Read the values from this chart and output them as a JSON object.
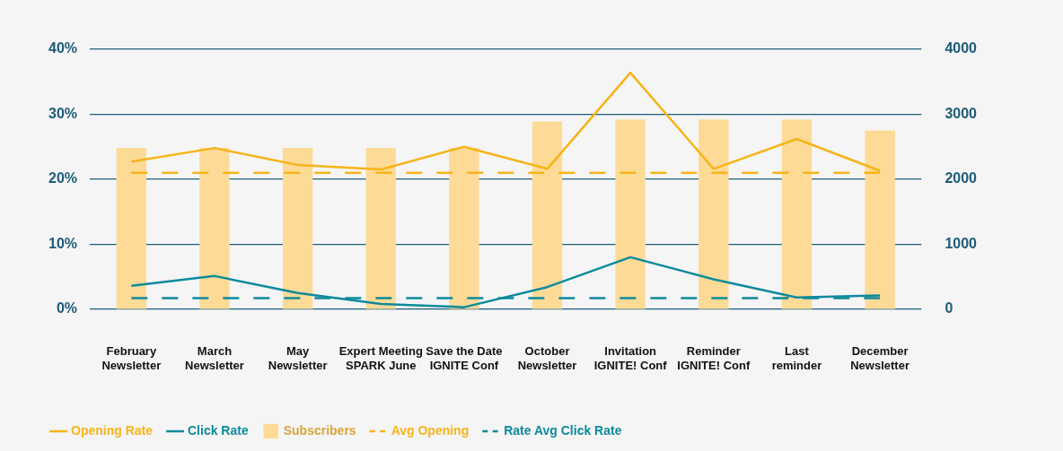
{
  "chart_data": {
    "type": "bar",
    "categories": [
      "February Newsletter",
      "March Newsletter",
      "May Newsletter",
      "Expert Meeting SPARK June",
      "Save the Date IGNITE Conf",
      "October Newsletter",
      "Invitation IGNITE! Conf",
      "Reminder IGNITE! Conf",
      "Last reminder",
      "December Newsletter"
    ],
    "series": [
      {
        "name": "Opening Rate",
        "type": "line",
        "color": "#f6b419",
        "values": [
          22.7,
          24.8,
          22.2,
          21.5,
          25.0,
          21.6,
          36.4,
          21.6,
          26.2,
          21.3
        ]
      },
      {
        "name": "Click Rate",
        "type": "line",
        "color": "#0d8a9c",
        "values": [
          3.6,
          5.1,
          2.5,
          0.8,
          0.3,
          3.4,
          8.0,
          4.6,
          1.8,
          2.1
        ]
      },
      {
        "name": "Subscribers",
        "axis": "y2",
        "color": "#fddb97",
        "values": [
          2480,
          2480,
          2480,
          2480,
          2480,
          2890,
          2920,
          2920,
          2920,
          2750
        ]
      },
      {
        "name": "Avg Opening",
        "type": "line",
        "line_style": "dashed",
        "color": "#f6b419",
        "values": [
          21,
          21,
          21,
          21,
          21,
          21,
          21,
          21,
          21,
          21
        ]
      },
      {
        "name": "Rate Avg Click Rate",
        "type": "line",
        "line_style": "dashed",
        "color": "#0d8a9c",
        "values": [
          1.7,
          1.7,
          1.7,
          1.7,
          1.7,
          1.7,
          1.7,
          1.7,
          1.7,
          1.7
        ]
      }
    ],
    "ylim": [
      0,
      40
    ],
    "yticks": [
      {
        "value": 0,
        "label": "0%"
      },
      {
        "value": 10,
        "label": "10%"
      },
      {
        "value": 20,
        "label": "20%"
      },
      {
        "value": 30,
        "label": "30%"
      },
      {
        "value": 40,
        "label": "40%"
      }
    ],
    "y2lim": [
      0,
      4000
    ],
    "y2ticks": [
      0,
      1000,
      2000,
      3000,
      4000
    ],
    "grid": "y",
    "legend": "bottom left",
    "marker": "none"
  }
}
